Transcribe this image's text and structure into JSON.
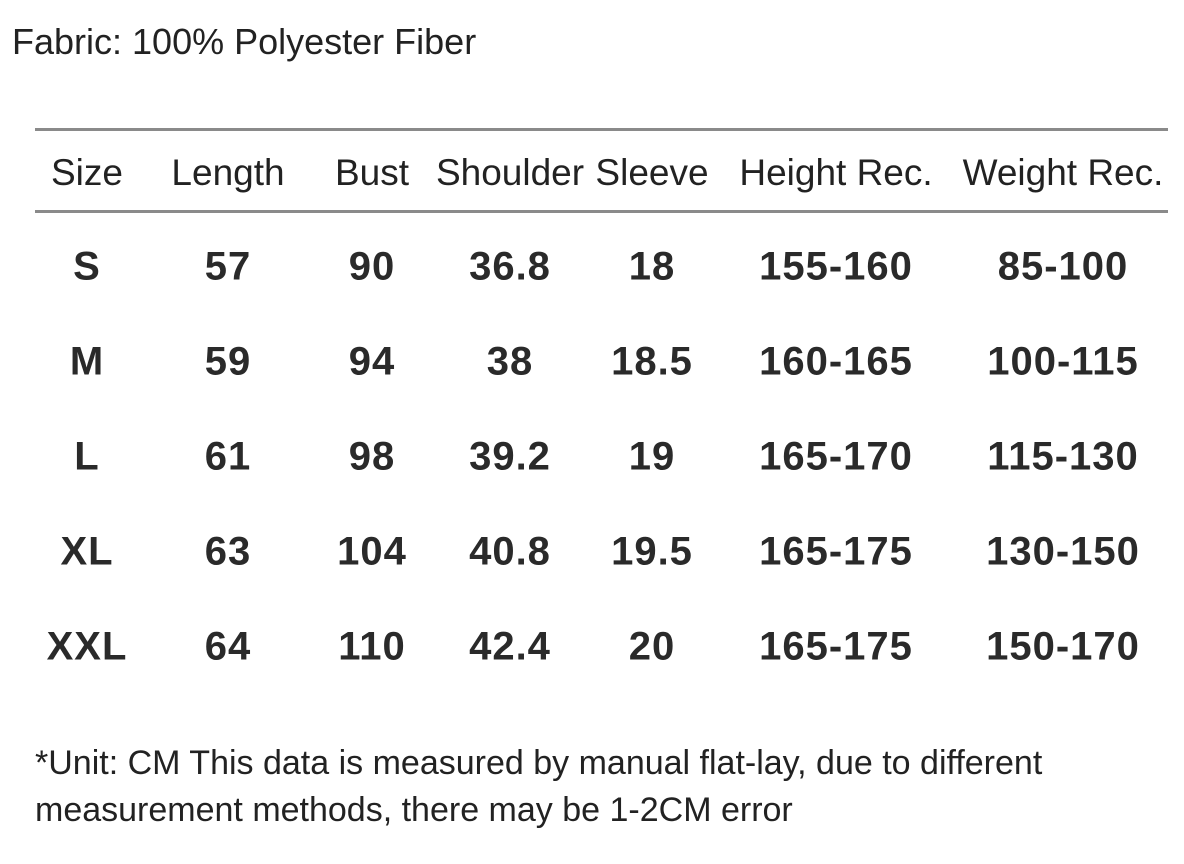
{
  "header": {
    "title": "Fabric: 100% Polyester Fiber"
  },
  "table": {
    "columns": [
      "Size",
      "Length",
      "Bust",
      "Shoulder",
      "Sleeve",
      "Height Rec.",
      "Weight Rec."
    ],
    "rows": [
      [
        "S",
        "57",
        "90",
        "36.8",
        "18",
        "155-160",
        "85-100"
      ],
      [
        "M",
        "59",
        "94",
        "38",
        "18.5",
        "160-165",
        "100-115"
      ],
      [
        "L",
        "61",
        "98",
        "39.2",
        "19",
        "165-170",
        "115-130"
      ],
      [
        "XL",
        "63",
        "104",
        "40.8",
        "19.5",
        "165-175",
        "130-150"
      ],
      [
        "XXL",
        "64",
        "110",
        "42.4",
        "20",
        "165-175",
        "150-170"
      ]
    ]
  },
  "footnote": "*Unit: CM This data is measured by manual flat-lay, due to different measurement methods, there may be 1-2CM error"
}
